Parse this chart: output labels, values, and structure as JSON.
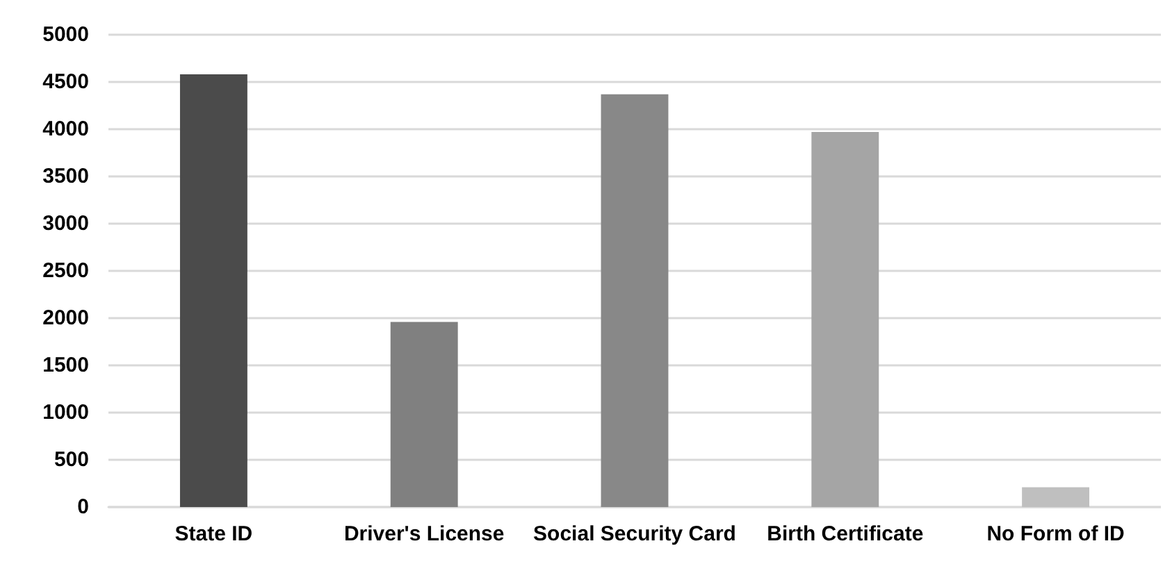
{
  "chart_data": {
    "type": "bar",
    "categories": [
      "State ID",
      "Driver's License",
      "Social Security Card",
      "Birth Certificate",
      "No Form of ID"
    ],
    "values": [
      4580,
      1960,
      4370,
      3970,
      210
    ],
    "colors": [
      "#4b4b4b",
      "#808080",
      "#888888",
      "#a5a5a5",
      "#bfbfbf"
    ],
    "ylim": [
      0,
      5000
    ],
    "yticks": [
      0,
      500,
      1000,
      1500,
      2000,
      2500,
      3000,
      3500,
      4000,
      4500,
      5000
    ],
    "grid": "y"
  }
}
